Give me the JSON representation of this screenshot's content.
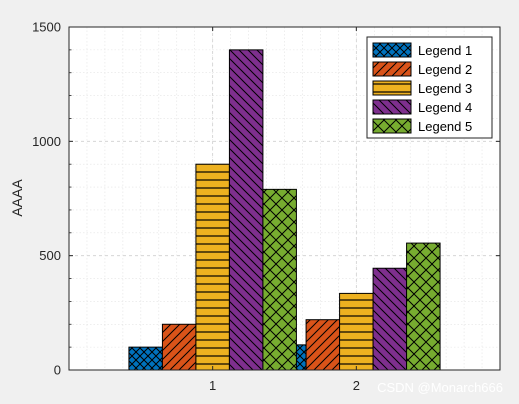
{
  "chart_data": {
    "type": "bar",
    "categories": [
      "1",
      "2"
    ],
    "series": [
      {
        "name": "Legend 1",
        "values": [
          100,
          110
        ],
        "color": "#0072bd",
        "hatch": "cross"
      },
      {
        "name": "Legend 2",
        "values": [
          200,
          220
        ],
        "color": "#d95319",
        "hatch": "diag-up"
      },
      {
        "name": "Legend 3",
        "values": [
          900,
          335
        ],
        "color": "#edb120",
        "hatch": "horizontal"
      },
      {
        "name": "Legend 4",
        "values": [
          1400,
          445
        ],
        "color": "#7e2f8e",
        "hatch": "diag-down"
      },
      {
        "name": "Legend 5",
        "values": [
          790,
          555
        ],
        "color": "#77ac30",
        "hatch": "diag-cross"
      }
    ],
    "ylabel": "AAAA",
    "xlabel": "",
    "ylim": [
      0,
      1500
    ],
    "yticks": [
      0,
      500,
      1000,
      1500
    ],
    "grid": true,
    "legend_position": "top-right"
  },
  "watermark": "CSDN @Monarch666"
}
